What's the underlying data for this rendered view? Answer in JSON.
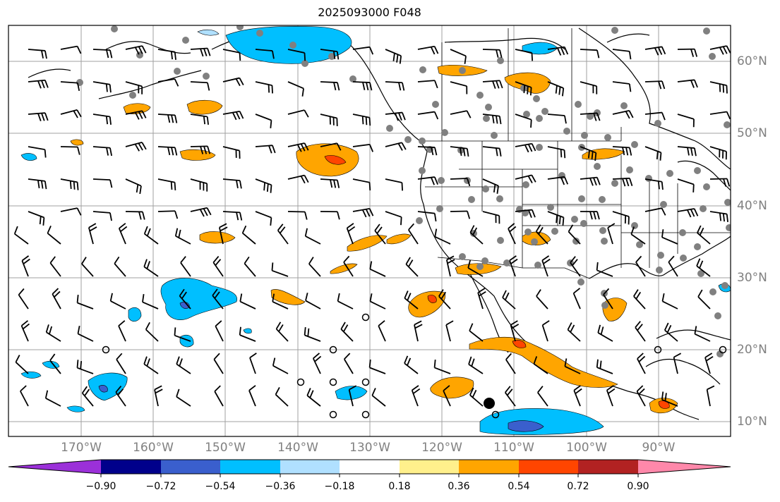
{
  "title": "2025093000 F048",
  "lon_labels": [
    "170°W",
    "160°W",
    "150°W",
    "140°W",
    "130°W",
    "120°W",
    "110°W",
    "100°W",
    "90°W"
  ],
  "lat_labels": [
    "60°N",
    "50°N",
    "40°N",
    "30°N",
    "20°N",
    "10°N"
  ],
  "colorbar": {
    "ticks": [
      "−0.90",
      "−0.72",
      "−0.54",
      "−0.36",
      "−0.18",
      "0.18",
      "0.36",
      "0.54",
      "0.72",
      "0.90"
    ],
    "colors": [
      "#9b30d9",
      "#00008b",
      "#3a5fcd",
      "#00bfff",
      "#b0e0ff",
      "#ffffff",
      "#fff08c",
      "#ffa500",
      "#ff4500",
      "#b22222",
      "#ff88aa"
    ]
  },
  "map_style": {
    "ocean": "#ffffff",
    "coastline": "#000000",
    "gridline": "#a0a0a0",
    "station_marker": "#808080",
    "wind_barb": "#000000"
  }
}
